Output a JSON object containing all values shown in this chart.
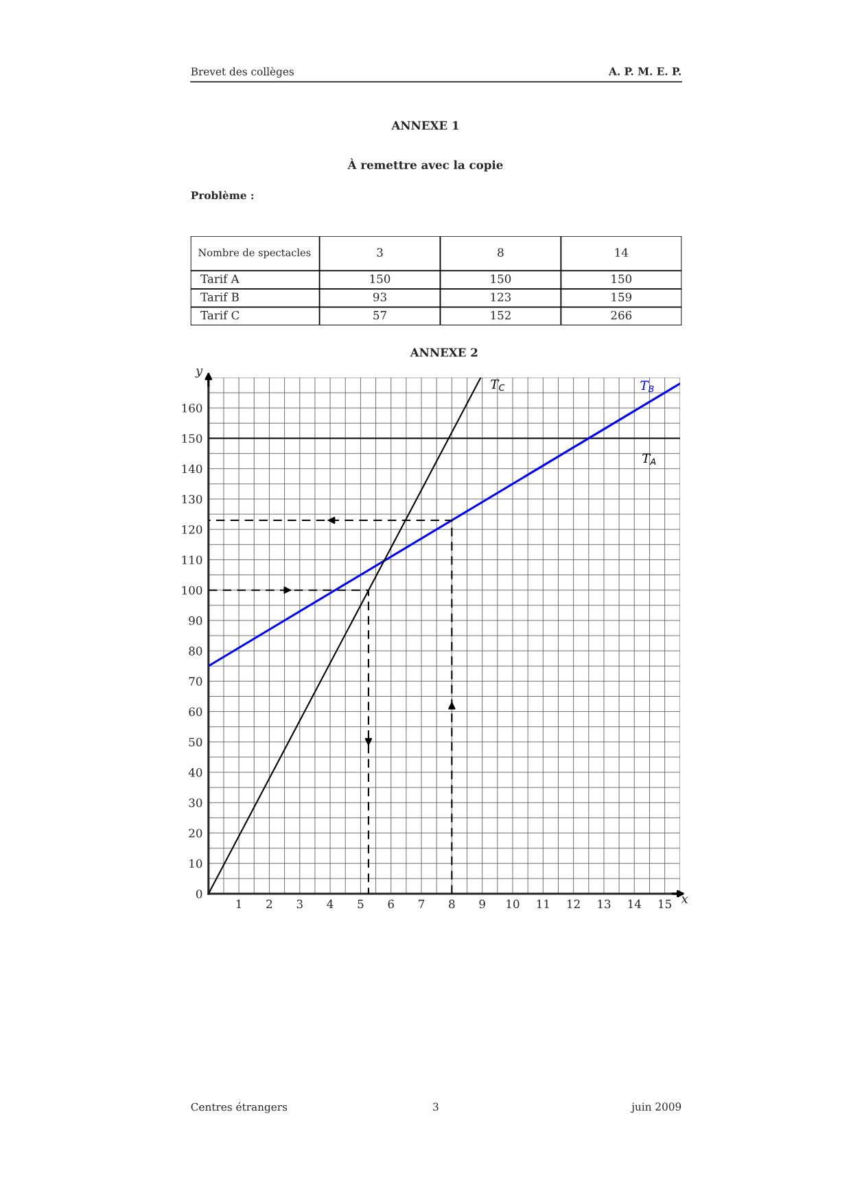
{
  "chart_data": [
    {
      "type": "other",
      "title": "ANNEXE 1",
      "subtitle": "À remettre avec la copie",
      "xlabel": "Nombre de spectacles",
      "categories": [
        "3",
        "8",
        "14"
      ],
      "y_categories": [
        "Tarif A",
        "Tarif B",
        "Tarif C"
      ],
      "cell_labels": [
        [
          "150",
          "150",
          "150"
        ],
        [
          "93",
          "123",
          "159"
        ],
        [
          "57",
          "152",
          "266"
        ]
      ],
      "annotations": [
        "Brevet des collèges",
        "A. P. M. E. P.",
        "Problème :",
        "Centres étrangers",
        "3",
        "juin 2009"
      ]
    },
    {
      "type": "line",
      "title": "ANNEXE 2",
      "xlabel": "x",
      "ylabel": "y",
      "xlim": [
        0,
        15.5
      ],
      "ylim": [
        0,
        170
      ],
      "xticks": [
        1,
        2,
        3,
        4,
        5,
        6,
        7,
        8,
        9,
        10,
        11,
        12,
        13,
        14,
        15
      ],
      "yticks": [
        0,
        10,
        20,
        30,
        40,
        50,
        60,
        70,
        80,
        90,
        100,
        110,
        120,
        130,
        140,
        150,
        160
      ],
      "grid": true,
      "series": [
        {
          "name": "T$_{A}$",
          "color": "#000000",
          "x": [
            0,
            15.5
          ],
          "values": [
            150,
            150
          ]
        },
        {
          "name": "T$_{B}$",
          "color": "#0000ff",
          "x": [
            0,
            15.5
          ],
          "values": [
            75,
            168
          ]
        },
        {
          "name": "T$_{C}$",
          "color": "#000000",
          "x": [
            0,
            8.95
          ],
          "values": [
            0,
            170
          ]
        },
        {
          "color": "#000000",
          "line_style": "dashed",
          "x": [
            0,
            5.26,
            5.26
          ],
          "values": [
            100,
            100,
            0
          ]
        },
        {
          "color": "#000000",
          "line_style": "dashed",
          "x": [
            8,
            8,
            0
          ],
          "values": [
            0,
            123,
            123
          ]
        }
      ]
    }
  ]
}
